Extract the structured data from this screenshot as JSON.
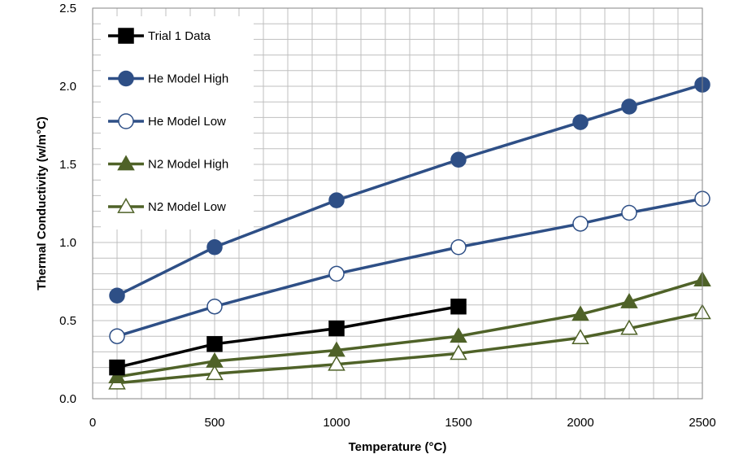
{
  "chart_data": {
    "type": "line",
    "xlabel": "Temperature (°C)",
    "ylabel": "Thermal Conductivity (w/m°C)",
    "xlim": [
      0,
      2500
    ],
    "ylim": [
      0,
      2.5
    ],
    "x_ticks": [
      "0",
      "500",
      "1000",
      "1500",
      "2000",
      "2500"
    ],
    "y_ticks": [
      "0.0",
      "0.5",
      "1.0",
      "1.5",
      "2.0",
      "2.5"
    ],
    "grid": true,
    "legend_position": "top-left",
    "series": [
      {
        "name": "Trial 1 Data",
        "color": "#000000",
        "marker": "square",
        "filled": true,
        "x": [
          100,
          500,
          1000,
          1500
        ],
        "y": [
          0.2,
          0.35,
          0.45,
          0.59
        ]
      },
      {
        "name": "He Model High",
        "color": "#2e4f86",
        "marker": "circle",
        "filled": true,
        "x": [
          100,
          500,
          1000,
          1500,
          2000,
          2200,
          2500
        ],
        "y": [
          0.66,
          0.97,
          1.27,
          1.53,
          1.77,
          1.87,
          2.01
        ]
      },
      {
        "name": "He Model Low",
        "color": "#2e4f86",
        "marker": "circle",
        "filled": false,
        "x": [
          100,
          500,
          1000,
          1500,
          2000,
          2200,
          2500
        ],
        "y": [
          0.4,
          0.59,
          0.8,
          0.97,
          1.12,
          1.19,
          1.28
        ]
      },
      {
        "name": "N2 Model High",
        "color": "#4f6228",
        "marker": "triangle",
        "filled": true,
        "x": [
          100,
          500,
          1000,
          1500,
          2000,
          2200,
          2500
        ],
        "y": [
          0.14,
          0.24,
          0.31,
          0.4,
          0.54,
          0.62,
          0.76
        ]
      },
      {
        "name": "N2 Model Low",
        "color": "#4f6228",
        "marker": "triangle",
        "filled": false,
        "x": [
          100,
          500,
          1000,
          1500,
          2000,
          2200,
          2500
        ],
        "y": [
          0.1,
          0.16,
          0.22,
          0.29,
          0.39,
          0.45,
          0.55
        ]
      }
    ]
  }
}
